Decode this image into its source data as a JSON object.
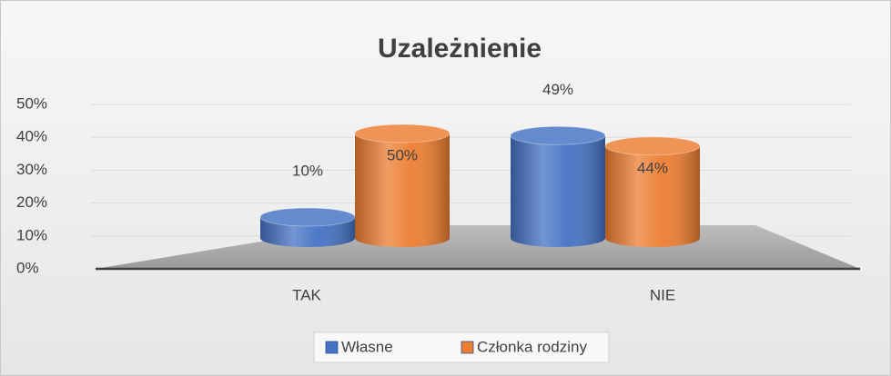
{
  "chart_data": {
    "type": "bar3d",
    "title": "Uzależnienie",
    "categories": [
      "TAK",
      "NIE"
    ],
    "series": [
      {
        "name": "Własne",
        "color": "#4472c4",
        "values": [
          10,
          49
        ],
        "value_labels": [
          "10%",
          "49%"
        ]
      },
      {
        "name": "Członka rodziny",
        "color": "#ed7d31",
        "values": [
          50,
          44
        ],
        "value_labels": [
          "50%",
          "44%"
        ]
      }
    ],
    "ylim": [
      0,
      50
    ],
    "yticks": [
      {
        "value": 0,
        "label": "0%"
      },
      {
        "value": 10,
        "label": "10%"
      },
      {
        "value": 20,
        "label": "20%"
      },
      {
        "value": 30,
        "label": "30%"
      },
      {
        "value": 40,
        "label": "40%"
      },
      {
        "value": 50,
        "label": "50%"
      }
    ],
    "grid": true,
    "legend": "bottom"
  }
}
